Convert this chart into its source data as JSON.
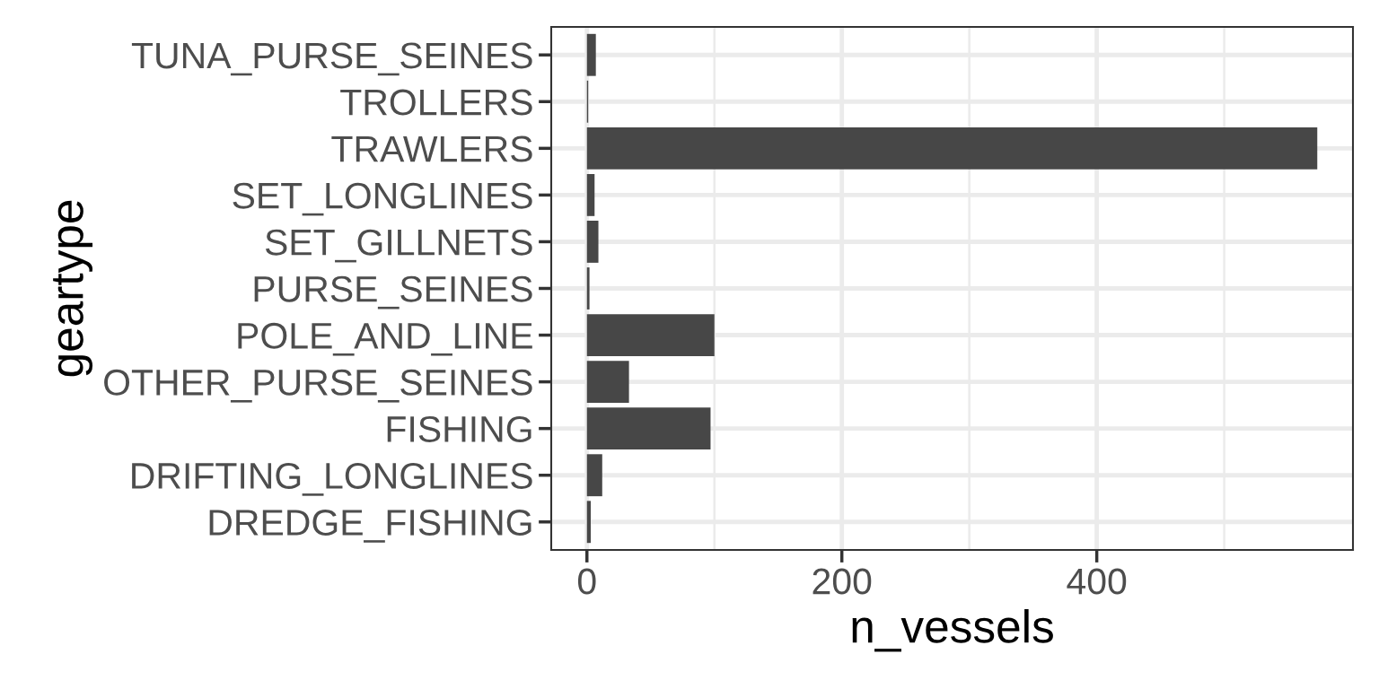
{
  "chart_data": {
    "type": "bar",
    "orientation": "horizontal",
    "xlabel": "n_vessels",
    "ylabel": "geartype",
    "categories": [
      "TUNA_PURSE_SEINES",
      "TROLLERS",
      "TRAWLERS",
      "SET_LONGLINES",
      "SET_GILLNETS",
      "PURSE_SEINES",
      "POLE_AND_LINE",
      "OTHER_PURSE_SEINES",
      "FISHING",
      "DRIFTING_LONGLINES",
      "DREDGE_FISHING"
    ],
    "values": [
      7,
      1,
      573,
      6,
      9,
      2,
      100,
      33,
      97,
      12,
      3
    ],
    "color": "#474747",
    "xlim": [
      -28,
      601
    ],
    "xticks": [
      0,
      200,
      400
    ],
    "grid": true
  }
}
